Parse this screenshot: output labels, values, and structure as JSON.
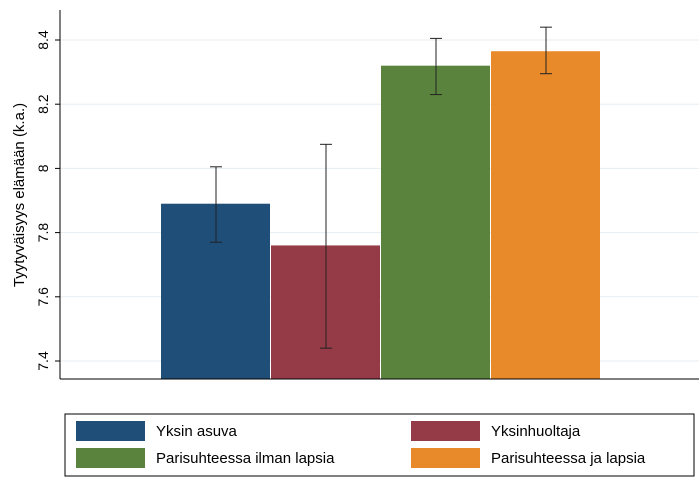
{
  "chart_data": {
    "type": "bar",
    "ylabel": "Tyytyväisyys elämään (k.a.)",
    "ylim": [
      7.35,
      8.5
    ],
    "yticks": [
      "7.4",
      "7.6",
      "7.8",
      "8",
      "8.2",
      "8.4"
    ],
    "grid": true,
    "legend_position": "bottom",
    "series": [
      {
        "name": "Yksin asuva",
        "value": 7.89,
        "ci_low": 7.77,
        "ci_high": 8.005,
        "color": "#1f4e79"
      },
      {
        "name": "Yksinhuoltaja",
        "value": 7.76,
        "ci_low": 7.44,
        "ci_high": 8.075,
        "color": "#943b47"
      },
      {
        "name": "Parisuhteessa ilman lapsia",
        "value": 8.32,
        "ci_low": 8.23,
        "ci_high": 8.405,
        "color": "#5a843d"
      },
      {
        "name": "Parisuhteessa ja lapsia",
        "value": 8.365,
        "ci_low": 8.295,
        "ci_high": 8.44,
        "color": "#e8892a"
      }
    ]
  }
}
